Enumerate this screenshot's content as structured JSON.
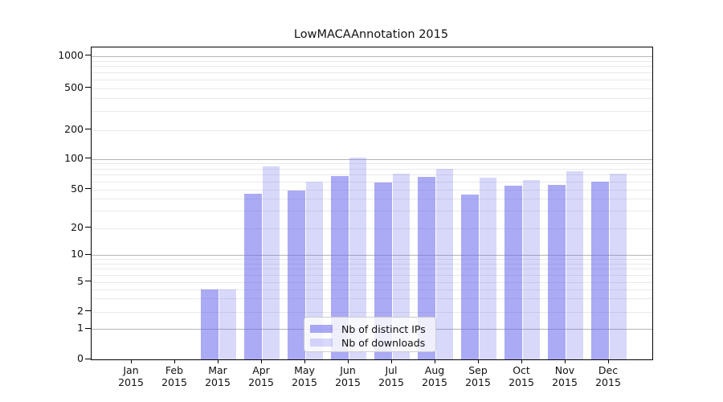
{
  "figure": {
    "title": "LowMACAAnnotation 2015"
  },
  "chart_data": {
    "type": "bar",
    "title": "LowMACAAnnotation 2015",
    "categories": [
      "Jan",
      "Feb",
      "Mar",
      "Apr",
      "May",
      "Jun",
      "Jul",
      "Aug",
      "Sep",
      "Oct",
      "Nov",
      "Dec"
    ],
    "category_year": "2015",
    "series": [
      {
        "name": "Nb of distinct IPs",
        "color": "rgba(104,104,238,0.56)",
        "values": [
          0,
          0,
          4,
          45,
          49,
          68,
          58,
          66,
          44,
          54,
          55,
          59
        ]
      },
      {
        "name": "Nb of downloads",
        "color": "rgba(104,104,238,0.26)",
        "values": [
          0,
          0,
          4,
          84,
          60,
          103,
          71,
          80,
          65,
          62,
          76,
          72
        ]
      }
    ],
    "yaxis": {
      "ticks": [
        0,
        1,
        2,
        5,
        10,
        20,
        50,
        100,
        200,
        500,
        1000
      ],
      "scale": "log-like (0,1,2,5,10,20,50,100,200,500,1000)",
      "range": [
        0,
        1200
      ]
    },
    "xlabel": "",
    "ylabel": "",
    "grid": true,
    "legend_position": "inside-bottom-center",
    "colors": {
      "grid_minor": "#e9e9e9",
      "grid_decade": "#b4b4b4",
      "axis": "#000000"
    }
  }
}
